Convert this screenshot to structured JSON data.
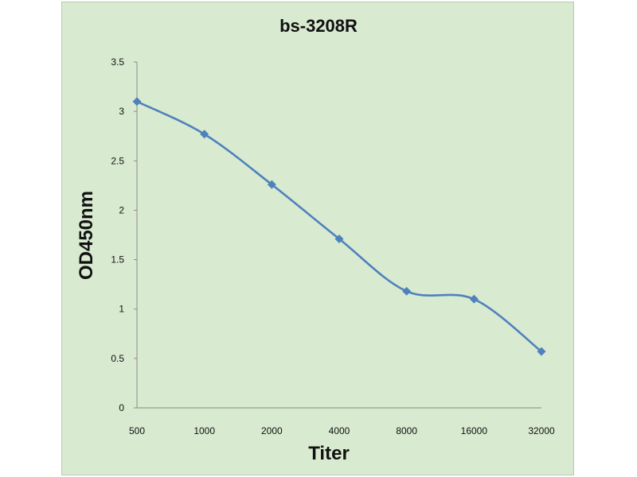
{
  "chart_data": {
    "type": "line",
    "title": "bs-3208R",
    "xlabel": "Titer",
    "ylabel": "OD450nm",
    "categories": [
      "500",
      "1000",
      "2000",
      "4000",
      "8000",
      "16000",
      "32000"
    ],
    "series": [
      {
        "values": [
          3.1,
          2.77,
          2.26,
          1.71,
          1.18,
          1.1,
          0.57
        ]
      }
    ],
    "ylim": [
      0,
      3.5
    ],
    "yticks": [
      "0",
      "0.5",
      "1",
      "1.5",
      "2",
      "2.5",
      "3",
      "3.5"
    ],
    "grid": false,
    "legend": "none",
    "colors": {
      "line": "#4f81bd",
      "background": "#d8ead0"
    }
  }
}
